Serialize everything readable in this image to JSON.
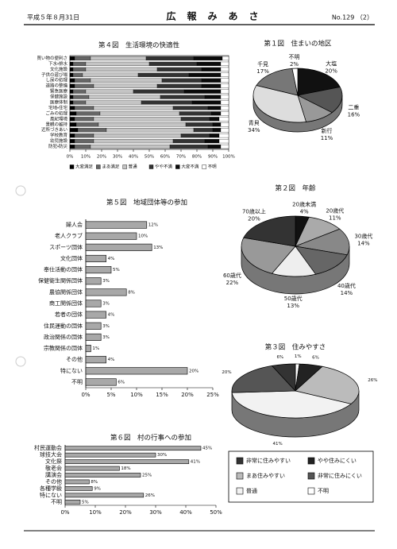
{
  "header": {
    "date": "平成５年８月31日",
    "title": "広　報　み　あ　さ",
    "issue": "No.129 （2）"
  },
  "chart_data": [
    {
      "type": "stacked_bar",
      "orientation": "horizontal",
      "title": "第４図　生活環境の快適性",
      "categories": [
        "買い物の便利さ",
        "下水・排水",
        "文化施設",
        "子供の遊び場",
        "し尿の処理",
        "道路の整備",
        "緊急医療",
        "保健施設",
        "医療体制",
        "宅地・住宅",
        "ごみの処理",
        "風紀環境",
        "景観の維持",
        "近所づきあい",
        "学校教育",
        "幼児施設",
        "防犯・防災"
      ],
      "series": [
        {
          "name": "大変満足",
          "color": "#000000",
          "values": [
            3,
            2,
            2,
            2,
            3,
            3,
            2,
            2,
            2,
            3,
            4,
            3,
            4,
            5,
            3,
            3,
            3
          ]
        },
        {
          "name": "まあ満足",
          "color": "#666666",
          "values": [
            10,
            8,
            8,
            6,
            10,
            12,
            8,
            10,
            8,
            12,
            15,
            12,
            14,
            18,
            12,
            12,
            10
          ]
        },
        {
          "name": "普通",
          "color": "#c4c4c4",
          "values": [
            35,
            40,
            45,
            35,
            45,
            40,
            30,
            45,
            35,
            50,
            50,
            55,
            55,
            55,
            55,
            50,
            50
          ]
        },
        {
          "name": "やや不満",
          "color": "#333333",
          "values": [
            30,
            30,
            28,
            32,
            25,
            28,
            32,
            28,
            32,
            22,
            20,
            18,
            17,
            12,
            18,
            20,
            24
          ]
        },
        {
          "name": "大変不満",
          "color": "#0a0a0a",
          "values": [
            18,
            15,
            12,
            20,
            12,
            12,
            23,
            10,
            18,
            8,
            6,
            6,
            5,
            5,
            6,
            9,
            8
          ]
        },
        {
          "name": "不明",
          "color": "#ffffff",
          "values": [
            4,
            5,
            5,
            5,
            5,
            5,
            5,
            5,
            5,
            5,
            5,
            6,
            5,
            5,
            6,
            6,
            5
          ]
        }
      ],
      "xlim": [
        0,
        100
      ],
      "xticks": [
        {
          "value": 0,
          "label": "0%"
        },
        {
          "value": 10,
          "label": "10%"
        },
        {
          "value": 20,
          "label": "20%"
        },
        {
          "value": 30,
          "label": "30%"
        },
        {
          "value": 40,
          "label": "40%"
        },
        {
          "value": 50,
          "label": "50%"
        },
        {
          "value": 60,
          "label": "60%"
        },
        {
          "value": 70,
          "label": "70%"
        },
        {
          "value": 80,
          "label": "80%"
        },
        {
          "value": 90,
          "label": "90%"
        },
        {
          "value": 100,
          "label": "100%"
        }
      ],
      "legend": "bottom"
    },
    {
      "type": "pie",
      "title": "第１図　住まいの地区",
      "categories": [
        "大塩",
        "二重",
        "新行",
        "青貝",
        "千見",
        "不明"
      ],
      "values": [
        20,
        16,
        11,
        34,
        17,
        2
      ],
      "value_labels": [
        "20%",
        "16%",
        "11%",
        "34%",
        "17%",
        "2%"
      ],
      "colors": [
        "#111111",
        "#555555",
        "#999999",
        "#dddddd",
        "#777777",
        "#ffffff"
      ],
      "slice_names": true
    },
    {
      "type": "bar",
      "orientation": "horizontal",
      "title": "第５図　地域団体等の参加",
      "categories": [
        "婦人会",
        "老人クラブ",
        "スポーツ団体",
        "文化団体",
        "奉仕活動の団体",
        "保健衛生関係団体",
        "農協関係団体",
        "商工関係団体",
        "若者の団体",
        "住民運動の団体",
        "政治関係の団体",
        "宗教関係の団体",
        "その他",
        "特にない",
        "不明"
      ],
      "values": [
        12,
        10,
        13,
        4,
        5,
        3,
        8,
        3,
        4,
        3,
        3,
        1,
        4,
        20,
        6
      ],
      "value_labels": [
        "12%",
        "10%",
        "13%",
        "4%",
        "5%",
        "3%",
        "8%",
        "3%",
        "4%",
        "3%",
        "3%",
        "1%",
        "4%",
        "20%",
        "6%"
      ],
      "color": "#a8a8a8",
      "xlim": [
        0,
        25
      ],
      "xticks": [
        {
          "value": 0,
          "label": "0%"
        },
        {
          "value": 5,
          "label": "5%"
        },
        {
          "value": 10,
          "label": "10%"
        },
        {
          "value": 15,
          "label": "15%"
        },
        {
          "value": 20,
          "label": "20%"
        },
        {
          "value": 25,
          "label": "25%"
        }
      ]
    },
    {
      "type": "pie",
      "title": "第２図　年齢",
      "categories": [
        "20歳未満",
        "20歳代",
        "30歳代",
        "40歳代",
        "50歳代",
        "60歳代",
        "70歳以上"
      ],
      "values": [
        4,
        11,
        14,
        14,
        13,
        22,
        20
      ],
      "value_labels": [
        "4%",
        "11%",
        "14%",
        "14%",
        "13%",
        "22%",
        "20%"
      ],
      "colors": [
        "#111111",
        "#aaaaaa",
        "#888888",
        "#666666",
        "#eeeeee",
        "#999999",
        "#333333"
      ],
      "slice_names": true
    },
    {
      "type": "pie",
      "title": "第３図　住みやすさ",
      "categories": [
        "不明",
        "やや住みにくい",
        "まあ住みやすい",
        "普通",
        "非常に住みにくい",
        "非常に住みやすい"
      ],
      "values": [
        1,
        6,
        26,
        41,
        20,
        6
      ],
      "value_labels": [
        "1%",
        "6%",
        "26%",
        "41%",
        "20%",
        "6%"
      ],
      "colors": [
        "#ffffff",
        "#222222",
        "#bbbbbb",
        "#f2f2f2",
        "#555555",
        "#333333"
      ],
      "slice_names": false,
      "legend": "bottom"
    },
    {
      "type": "bar",
      "orientation": "horizontal",
      "title": "第６図　村の行事への参加",
      "categories": [
        "村民運動会",
        "球技大会",
        "文化祭",
        "敬老会",
        "講演会",
        "その他",
        "各種学級",
        "特にない",
        "不明"
      ],
      "values": [
        45,
        30,
        41,
        18,
        25,
        8,
        9,
        26,
        5
      ],
      "value_labels": [
        "45%",
        "30%",
        "41%",
        "18%",
        "25%",
        "8%",
        "9%",
        "26%",
        "5%"
      ],
      "color": "#a8a8a8",
      "xlim": [
        0,
        50
      ],
      "xticks": [
        {
          "value": 0,
          "label": "0%"
        },
        {
          "value": 10,
          "label": "10%"
        },
        {
          "value": 20,
          "label": "20%"
        },
        {
          "value": 30,
          "label": "30%"
        },
        {
          "value": 40,
          "label": "40%"
        },
        {
          "value": 50,
          "label": "50%"
        }
      ]
    }
  ]
}
